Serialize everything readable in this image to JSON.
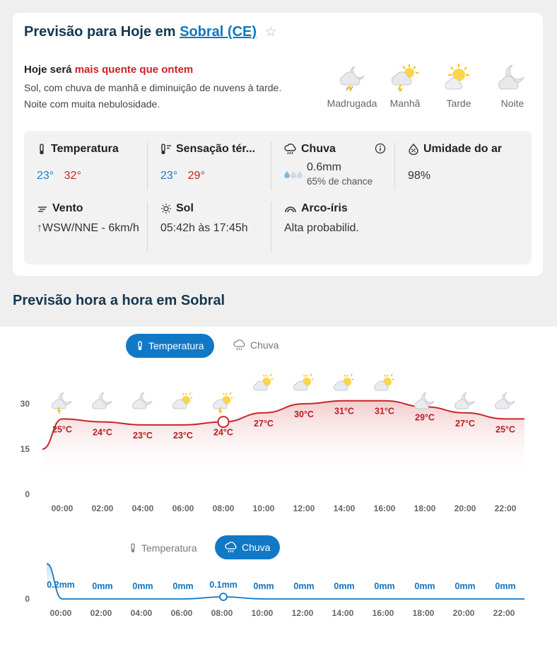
{
  "header": {
    "title_prefix": "Previsão para Hoje em",
    "city": "Sobral (CE)",
    "favorite_icon": "star-icon"
  },
  "today": {
    "lead": "Hoje será",
    "highlight": "mais quente que ontem",
    "description": "Sol, com chuva de manhã e diminuição de nuvens à tarde. Noite com muita nebulosidade."
  },
  "periods": [
    {
      "label": "Madrugada",
      "icon": "night-cloud-rain-icon"
    },
    {
      "label": "Manhã",
      "icon": "sun-cloud-storm-icon"
    },
    {
      "label": "Tarde",
      "icon": "sun-cloud-icon"
    },
    {
      "label": "Noite",
      "icon": "moon-cloud-icon"
    }
  ],
  "stats": {
    "temperature": {
      "label": "Temperatura",
      "min": "23°",
      "max": "32°"
    },
    "feels_like": {
      "label": "Sensação tér...",
      "min": "23°",
      "max": "29°"
    },
    "rain": {
      "label": "Chuva",
      "amount": "0.6mm",
      "chance": "65% de chance"
    },
    "humidity": {
      "label": "Umidade do ar",
      "value": "98%"
    },
    "wind": {
      "label": "Vento",
      "arrow": "↑",
      "value": "WSW/NNE - 6km/h"
    },
    "sun": {
      "label": "Sol",
      "value": "05:42h às 17:45h"
    },
    "rainbow": {
      "label": "Arco-íris",
      "value": "Alta probabilid."
    }
  },
  "hourly": {
    "title": "Previsão hora a hora em Sobral",
    "tabs_top": {
      "temperature": "Temperatura",
      "rain": "Chuva",
      "active": "temperature"
    },
    "tabs_bottom": {
      "temperature": "Temperatura",
      "rain": "Chuva",
      "active": "rain"
    }
  },
  "chart_data": [
    {
      "type": "line",
      "title": "",
      "x": [
        "00:00",
        "02:00",
        "04:00",
        "06:00",
        "08:00",
        "10:00",
        "12:00",
        "14:00",
        "16:00",
        "18:00",
        "20:00",
        "22:00"
      ],
      "yticks": [
        0,
        15,
        30
      ],
      "ylim": [
        0,
        35
      ],
      "series": [
        {
          "values": [
            25,
            24,
            23,
            23,
            24,
            27,
            30,
            31,
            31,
            29,
            27,
            25
          ],
          "labels": [
            "25°C",
            "24°C",
            "23°C",
            "23°C",
            "24°C",
            "27°C",
            "30°C",
            "31°C",
            "31°C",
            "29°C",
            "27°C",
            "25°C"
          ],
          "color": "#c8262a"
        }
      ],
      "icons": [
        "night-cloud-rain-icon",
        "moon-cloud-icon",
        "moon-cloud-icon",
        "sun-cloud-icon",
        "sun-cloud-storm-icon",
        "sun-cloud-icon",
        "sun-cloud-icon",
        "sun-cloud-icon",
        "sun-cloud-icon",
        "moon-cloud-icon",
        "moon-cloud-icon",
        "moon-cloud-icon"
      ],
      "highlight_index": 4
    },
    {
      "type": "line",
      "title": "",
      "x": [
        "00:00",
        "02:00",
        "04:00",
        "06:00",
        "08:00",
        "10:00",
        "12:00",
        "14:00",
        "16:00",
        "18:00",
        "20:00",
        "22:00"
      ],
      "yticks": [
        0
      ],
      "series": [
        {
          "values": [
            0.2,
            0,
            0,
            0,
            0.1,
            0,
            0,
            0,
            0,
            0,
            0,
            0
          ],
          "labels": [
            "0.2mm",
            "0mm",
            "0mm",
            "0mm",
            "0.1mm",
            "0mm",
            "0mm",
            "0mm",
            "0mm",
            "0mm",
            "0mm",
            "0mm"
          ],
          "color": "#1178c6"
        }
      ],
      "highlight_index": 4
    }
  ]
}
